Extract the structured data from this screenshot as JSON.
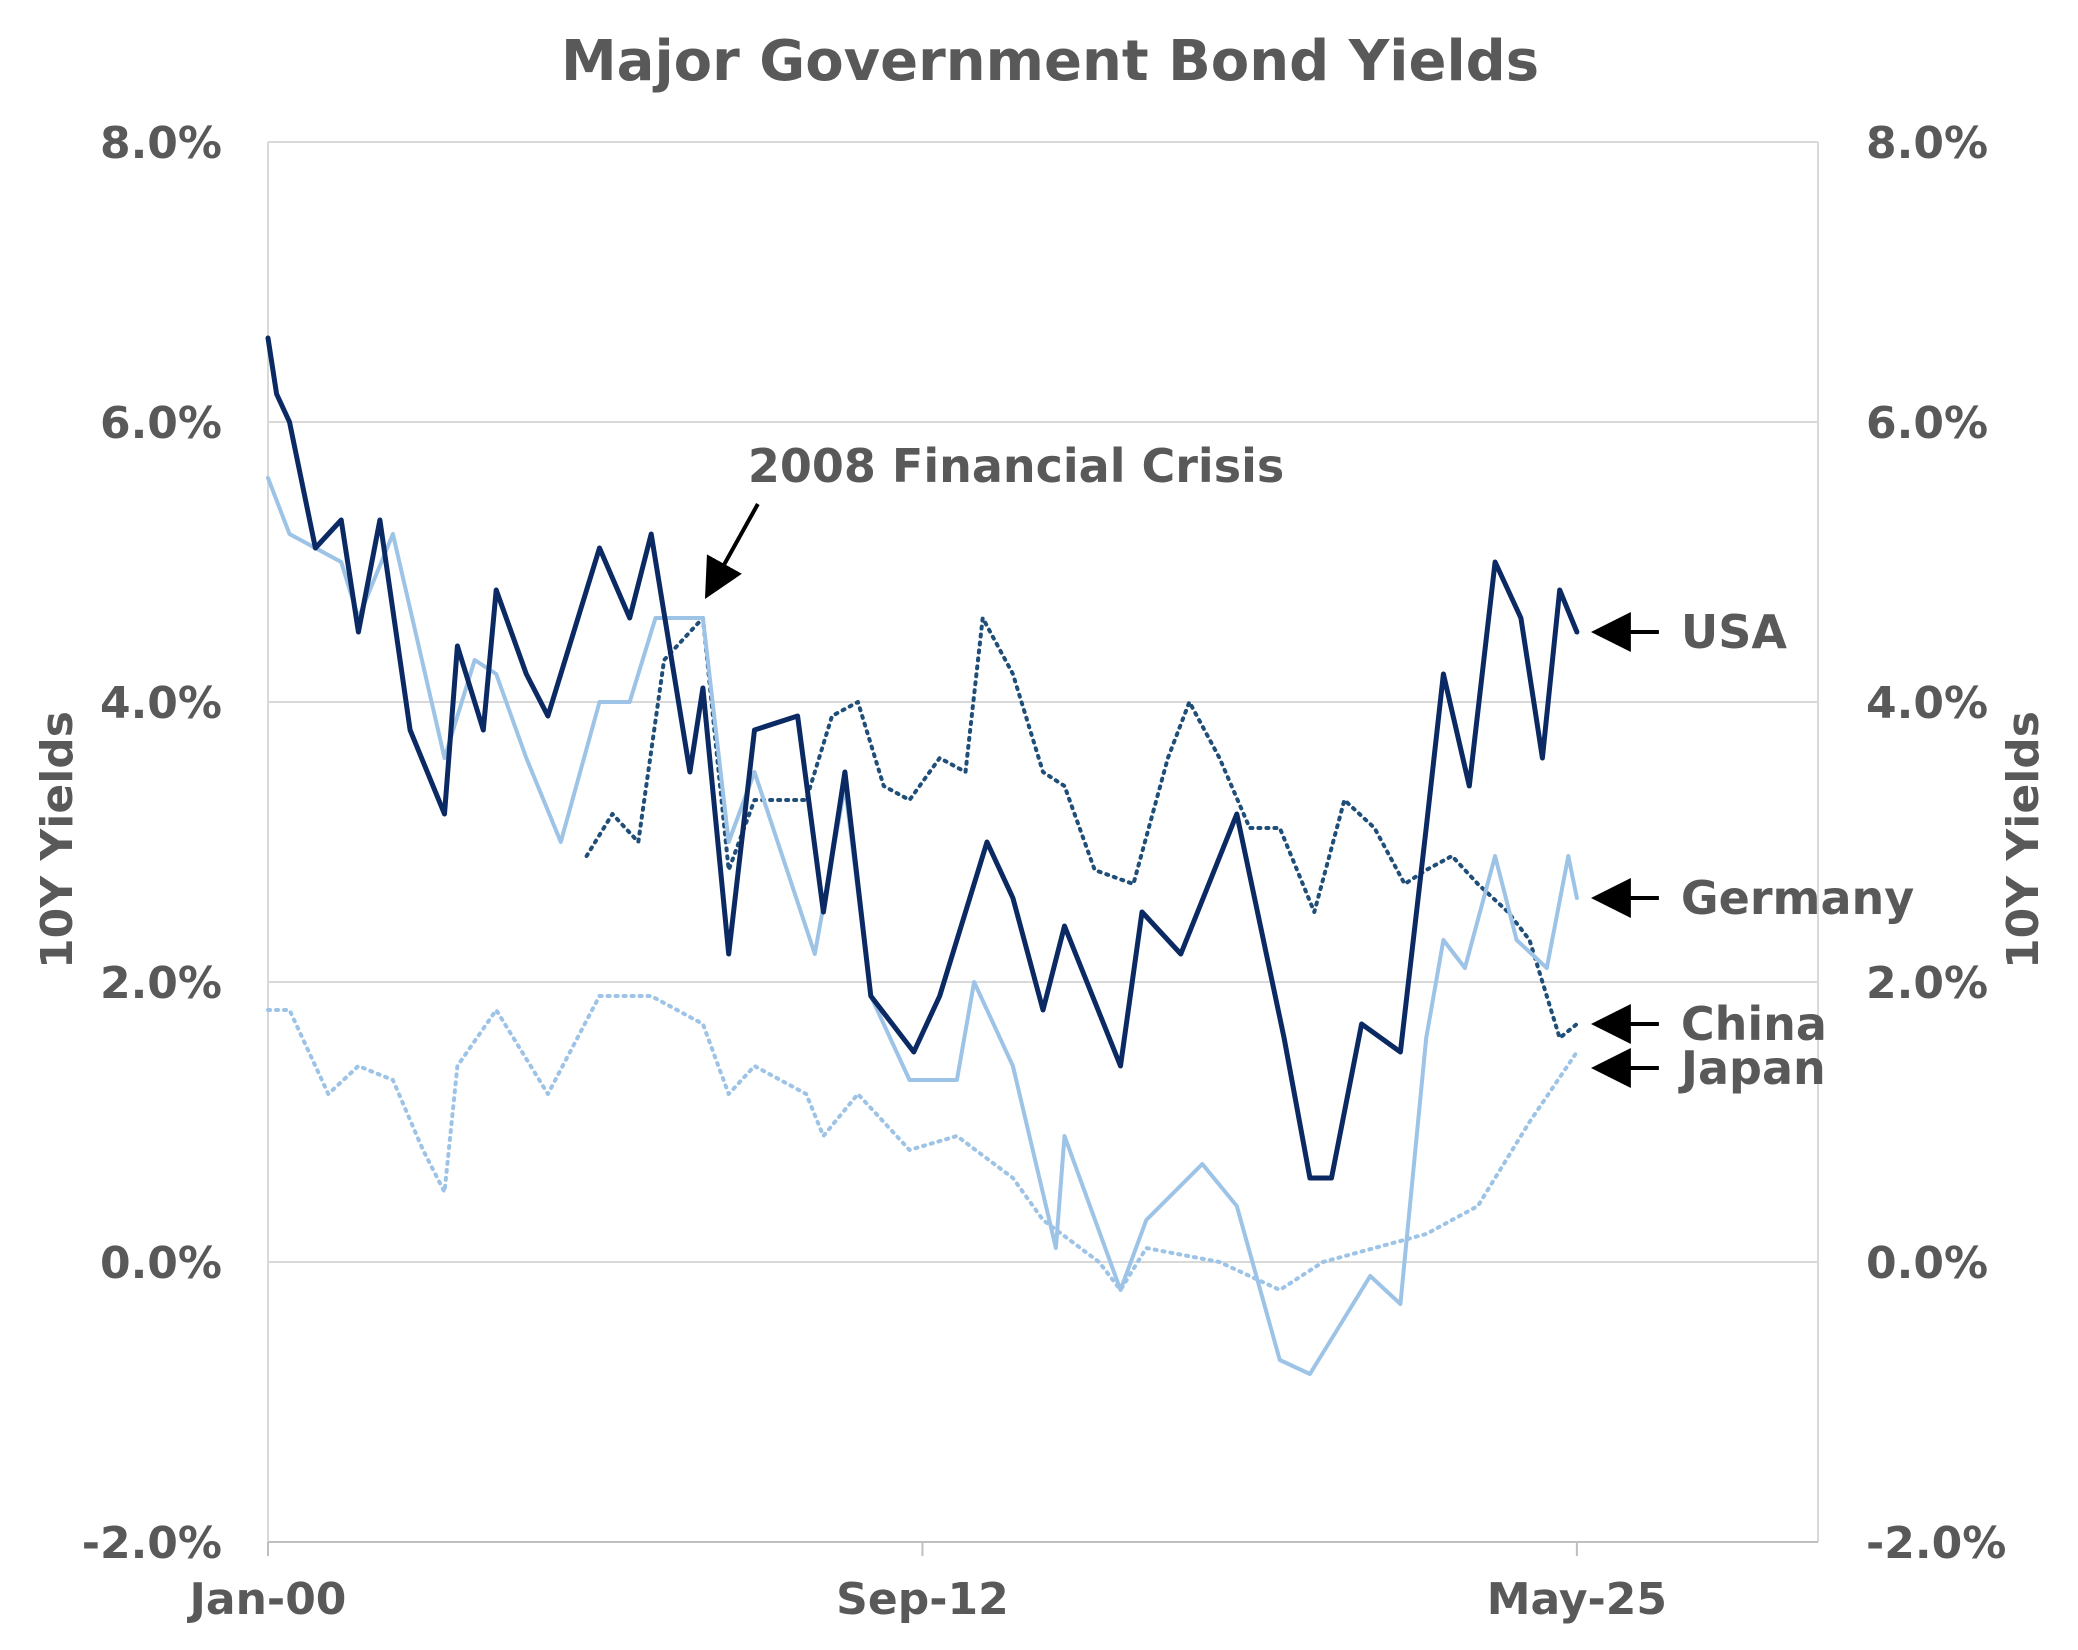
{
  "chart_data": {
    "type": "line",
    "title": "Major Government Bond Yields",
    "ylabel_left": "10Y  Yields",
    "ylabel_right": "10Y  Yields",
    "ylim": [
      -2.0,
      8.0
    ],
    "yticks": [
      -2.0,
      0.0,
      2.0,
      4.0,
      6.0,
      8.0
    ],
    "ytick_labels": [
      "-2.0%",
      "0.0%",
      "2.0%",
      "4.0%",
      "6.0%",
      "8.0%"
    ],
    "xlim": [
      "2000-01",
      "2030-01"
    ],
    "xticks": [
      {
        "date": "2000-01",
        "label": "Jan-00"
      },
      {
        "date": "2012-09",
        "label": "Sep-12"
      },
      {
        "date": "2025-05",
        "label": "May-25"
      }
    ],
    "grid": "horizontal",
    "series": [
      {
        "name": "USA",
        "style": "solid",
        "color": "#0b2a63",
        "points": [
          [
            "2000-01",
            6.6
          ],
          [
            "2000-03",
            6.2
          ],
          [
            "2000-06",
            6.0
          ],
          [
            "2000-12",
            5.1
          ],
          [
            "2001-06",
            5.3
          ],
          [
            "2001-10",
            4.5
          ],
          [
            "2002-03",
            5.3
          ],
          [
            "2002-10",
            3.8
          ],
          [
            "2003-06",
            3.2
          ],
          [
            "2003-09",
            4.4
          ],
          [
            "2004-03",
            3.8
          ],
          [
            "2004-06",
            4.8
          ],
          [
            "2005-01",
            4.2
          ],
          [
            "2005-06",
            3.9
          ],
          [
            "2006-06",
            5.1
          ],
          [
            "2007-01",
            4.6
          ],
          [
            "2007-06",
            5.2
          ],
          [
            "2008-03",
            3.5
          ],
          [
            "2008-06",
            4.1
          ],
          [
            "2008-12",
            2.2
          ],
          [
            "2009-06",
            3.8
          ],
          [
            "2010-04",
            3.9
          ],
          [
            "2010-10",
            2.5
          ],
          [
            "2011-03",
            3.5
          ],
          [
            "2011-09",
            1.9
          ],
          [
            "2012-07",
            1.5
          ],
          [
            "2013-01",
            1.9
          ],
          [
            "2013-12",
            3.0
          ],
          [
            "2014-06",
            2.6
          ],
          [
            "2015-01",
            1.8
          ],
          [
            "2015-06",
            2.4
          ],
          [
            "2016-07",
            1.4
          ],
          [
            "2016-12",
            2.5
          ],
          [
            "2017-09",
            2.2
          ],
          [
            "2018-10",
            3.2
          ],
          [
            "2019-09",
            1.6
          ],
          [
            "2020-03",
            0.6
          ],
          [
            "2020-08",
            0.6
          ],
          [
            "2021-03",
            1.7
          ],
          [
            "2021-12",
            1.5
          ],
          [
            "2022-06",
            3.1
          ],
          [
            "2022-10",
            4.2
          ],
          [
            "2023-04",
            3.4
          ],
          [
            "2023-10",
            5.0
          ],
          [
            "2024-04",
            4.6
          ],
          [
            "2024-09",
            3.6
          ],
          [
            "2025-01",
            4.8
          ],
          [
            "2025-05",
            4.5
          ]
        ]
      },
      {
        "name": "Germany",
        "style": "solid",
        "color": "#9dc3e6",
        "points": [
          [
            "2000-01",
            5.6
          ],
          [
            "2000-06",
            5.2
          ],
          [
            "2001-06",
            5.0
          ],
          [
            "2001-10",
            4.6
          ],
          [
            "2002-06",
            5.2
          ],
          [
            "2003-03",
            4.0
          ],
          [
            "2003-06",
            3.6
          ],
          [
            "2004-01",
            4.3
          ],
          [
            "2004-06",
            4.2
          ],
          [
            "2005-01",
            3.6
          ],
          [
            "2005-09",
            3.0
          ],
          [
            "2006-06",
            4.0
          ],
          [
            "2007-01",
            4.0
          ],
          [
            "2007-07",
            4.6
          ],
          [
            "2008-06",
            4.6
          ],
          [
            "2008-12",
            3.0
          ],
          [
            "2009-06",
            3.5
          ],
          [
            "2010-08",
            2.2
          ],
          [
            "2011-03",
            3.4
          ],
          [
            "2011-09",
            1.9
          ],
          [
            "2012-06",
            1.3
          ],
          [
            "2013-05",
            1.3
          ],
          [
            "2013-09",
            2.0
          ],
          [
            "2014-06",
            1.4
          ],
          [
            "2015-04",
            0.1
          ],
          [
            "2015-06",
            0.9
          ],
          [
            "2016-07",
            -0.2
          ],
          [
            "2017-01",
            0.3
          ],
          [
            "2018-02",
            0.7
          ],
          [
            "2018-10",
            0.4
          ],
          [
            "2019-08",
            -0.7
          ],
          [
            "2020-03",
            -0.8
          ],
          [
            "2020-09",
            -0.5
          ],
          [
            "2021-05",
            -0.1
          ],
          [
            "2021-12",
            -0.3
          ],
          [
            "2022-06",
            1.6
          ],
          [
            "2022-10",
            2.3
          ],
          [
            "2023-03",
            2.1
          ],
          [
            "2023-10",
            2.9
          ],
          [
            "2024-03",
            2.3
          ],
          [
            "2024-10",
            2.1
          ],
          [
            "2025-03",
            2.9
          ],
          [
            "2025-05",
            2.6
          ]
        ]
      },
      {
        "name": "China",
        "style": "dotted",
        "color": "#1f4e79",
        "points": [
          [
            "2006-03",
            2.9
          ],
          [
            "2006-09",
            3.2
          ],
          [
            "2007-03",
            3.0
          ],
          [
            "2007-09",
            4.3
          ],
          [
            "2008-03",
            4.5
          ],
          [
            "2008-06",
            4.6
          ],
          [
            "2008-12",
            2.8
          ],
          [
            "2009-06",
            3.3
          ],
          [
            "2010-06",
            3.3
          ],
          [
            "2010-12",
            3.9
          ],
          [
            "2011-06",
            4.0
          ],
          [
            "2011-12",
            3.4
          ],
          [
            "2012-06",
            3.3
          ],
          [
            "2013-01",
            3.6
          ],
          [
            "2013-07",
            3.5
          ],
          [
            "2013-11",
            4.6
          ],
          [
            "2014-06",
            4.2
          ],
          [
            "2015-01",
            3.5
          ],
          [
            "2015-06",
            3.4
          ],
          [
            "2016-01",
            2.8
          ],
          [
            "2016-10",
            2.7
          ],
          [
            "2017-06",
            3.6
          ],
          [
            "2017-11",
            4.0
          ],
          [
            "2018-06",
            3.6
          ],
          [
            "2019-01",
            3.1
          ],
          [
            "2019-08",
            3.1
          ],
          [
            "2020-04",
            2.5
          ],
          [
            "2020-11",
            3.3
          ],
          [
            "2021-06",
            3.1
          ],
          [
            "2022-01",
            2.7
          ],
          [
            "2022-06",
            2.8
          ],
          [
            "2022-12",
            2.9
          ],
          [
            "2023-06",
            2.7
          ],
          [
            "2024-01",
            2.5
          ],
          [
            "2024-06",
            2.3
          ],
          [
            "2025-01",
            1.6
          ],
          [
            "2025-05",
            1.7
          ]
        ]
      },
      {
        "name": "Japan",
        "style": "dotted",
        "color": "#9dc3e6",
        "points": [
          [
            "2000-01",
            1.8
          ],
          [
            "2000-06",
            1.8
          ],
          [
            "2001-03",
            1.2
          ],
          [
            "2001-10",
            1.4
          ],
          [
            "2002-06",
            1.3
          ],
          [
            "2003-01",
            0.8
          ],
          [
            "2003-06",
            0.5
          ],
          [
            "2003-09",
            1.4
          ],
          [
            "2004-06",
            1.8
          ],
          [
            "2005-06",
            1.2
          ],
          [
            "2006-06",
            1.9
          ],
          [
            "2007-06",
            1.9
          ],
          [
            "2008-06",
            1.7
          ],
          [
            "2008-12",
            1.2
          ],
          [
            "2009-06",
            1.4
          ],
          [
            "2010-06",
            1.2
          ],
          [
            "2010-10",
            0.9
          ],
          [
            "2011-06",
            1.2
          ],
          [
            "2012-06",
            0.8
          ],
          [
            "2013-05",
            0.9
          ],
          [
            "2014-06",
            0.6
          ],
          [
            "2015-01",
            0.3
          ],
          [
            "2016-02",
            0.0
          ],
          [
            "2016-07",
            -0.2
          ],
          [
            "2017-01",
            0.1
          ],
          [
            "2018-06",
            0.0
          ],
          [
            "2019-08",
            -0.2
          ],
          [
            "2020-06",
            0.0
          ],
          [
            "2021-06",
            0.1
          ],
          [
            "2022-06",
            0.2
          ],
          [
            "2023-06",
            0.4
          ],
          [
            "2024-06",
            1.0
          ],
          [
            "2025-05",
            1.5
          ]
        ]
      }
    ],
    "annotations": [
      {
        "text": "2008 Financial Crisis",
        "target": [
          "2008-06",
          4.7
        ]
      },
      {
        "text": "USA",
        "series": "USA"
      },
      {
        "text": "Germany",
        "series": "Germany"
      },
      {
        "text": "China",
        "series": "China"
      },
      {
        "text": "Japan",
        "series": "Japan"
      }
    ]
  }
}
